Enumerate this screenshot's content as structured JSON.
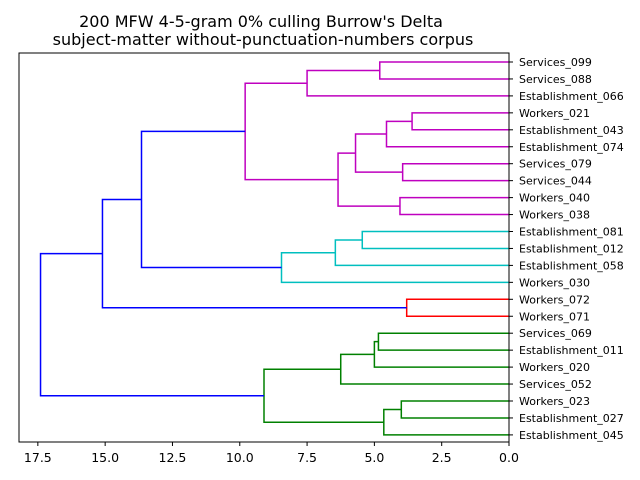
{
  "chart_data": {
    "type": "dendrogram",
    "title": "200 MFW 4-5-gram 0% culling Burrow's Delta",
    "subtitle": "subject-matter without-punctuation-numbers corpus",
    "xlim": [
      18.2,
      0.0
    ],
    "xticks": [
      "17.5",
      "15.0",
      "12.5",
      "10.0",
      "7.5",
      "5.0",
      "2.5",
      "0.0"
    ],
    "xtick_values": [
      17.5,
      15.0,
      12.5,
      10.0,
      7.5,
      5.0,
      2.5,
      0.0
    ],
    "leaves": [
      "Services_099",
      "Services_088",
      "Establishment_066",
      "Workers_021",
      "Establishment_043",
      "Establishment_074",
      "Services_079",
      "Services_044",
      "Workers_040",
      "Workers_038",
      "Establishment_081",
      "Establishment_012",
      "Establishment_058",
      "Workers_030",
      "Workers_072",
      "Workers_071",
      "Services_069",
      "Establishment_011",
      "Workers_020",
      "Services_052",
      "Workers_023",
      "Establishment_027",
      "Establishment_045"
    ],
    "colors": {
      "magenta": "#bf00bf",
      "cyan": "#00bfbf",
      "red": "#ff0000",
      "green": "#008000",
      "blue": "#0000ff"
    },
    "merges": [
      {
        "id": 23,
        "a": 0,
        "b": 1,
        "height": 4.8,
        "color": "magenta"
      },
      {
        "id": 24,
        "a": 23,
        "b": 2,
        "height": 7.5,
        "color": "magenta"
      },
      {
        "id": 25,
        "a": 3,
        "b": 4,
        "height": 3.6,
        "color": "magenta"
      },
      {
        "id": 26,
        "a": 25,
        "b": 5,
        "height": 4.55,
        "color": "magenta"
      },
      {
        "id": 27,
        "a": 6,
        "b": 7,
        "height": 3.95,
        "color": "magenta"
      },
      {
        "id": 28,
        "a": 26,
        "b": 27,
        "height": 5.7,
        "color": "magenta"
      },
      {
        "id": 29,
        "a": 8,
        "b": 9,
        "height": 4.05,
        "color": "magenta"
      },
      {
        "id": 30,
        "a": 28,
        "b": 29,
        "height": 6.35,
        "color": "magenta"
      },
      {
        "id": 31,
        "a": 24,
        "b": 30,
        "height": 9.8,
        "color": "magenta"
      },
      {
        "id": 32,
        "a": 10,
        "b": 11,
        "height": 5.45,
        "color": "cyan"
      },
      {
        "id": 33,
        "a": 32,
        "b": 12,
        "height": 6.45,
        "color": "cyan"
      },
      {
        "id": 34,
        "a": 33,
        "b": 13,
        "height": 8.45,
        "color": "cyan"
      },
      {
        "id": 35,
        "a": 31,
        "b": 34,
        "height": 13.65,
        "color": "blue"
      },
      {
        "id": 36,
        "a": 14,
        "b": 15,
        "height": 3.8,
        "color": "red"
      },
      {
        "id": 37,
        "a": 35,
        "b": 36,
        "height": 15.1,
        "color": "blue"
      },
      {
        "id": 38,
        "a": 16,
        "b": 17,
        "height": 4.85,
        "color": "green"
      },
      {
        "id": 39,
        "a": 38,
        "b": 18,
        "height": 5.0,
        "color": "green"
      },
      {
        "id": 40,
        "a": 39,
        "b": 19,
        "height": 6.25,
        "color": "green"
      },
      {
        "id": 41,
        "a": 20,
        "b": 21,
        "height": 4.0,
        "color": "green"
      },
      {
        "id": 42,
        "a": 41,
        "b": 22,
        "height": 4.65,
        "color": "green"
      },
      {
        "id": 43,
        "a": 40,
        "b": 42,
        "height": 9.1,
        "color": "green"
      },
      {
        "id": 44,
        "a": 37,
        "b": 43,
        "height": 17.4,
        "color": "blue"
      }
    ],
    "grid": false
  }
}
